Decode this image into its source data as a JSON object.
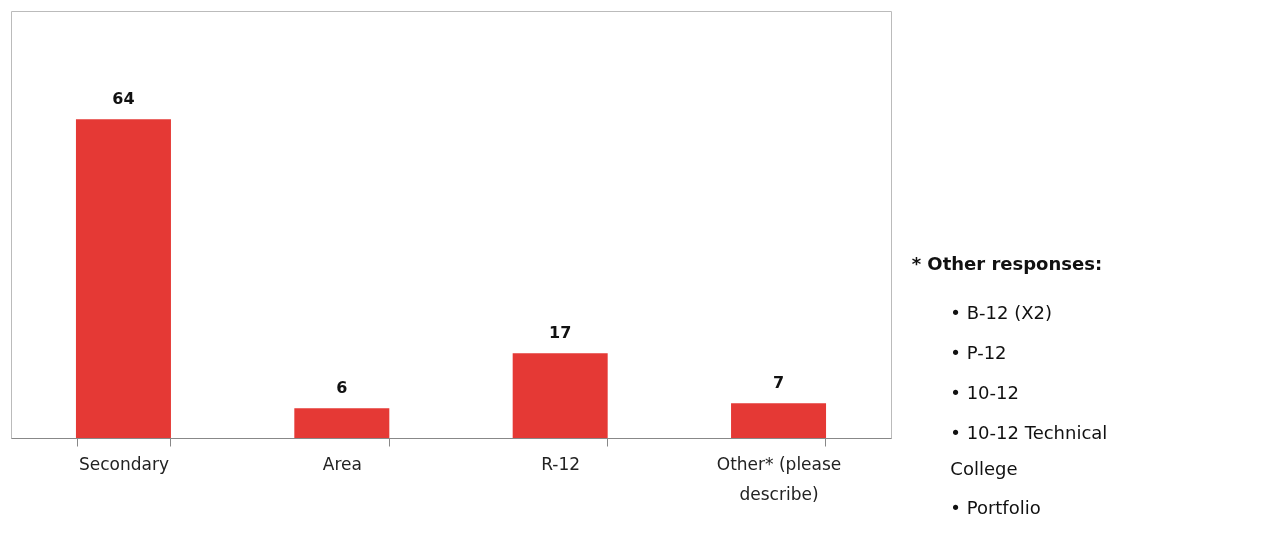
{
  "chart_data": {
    "type": "bar",
    "categories": [
      "Secondary",
      "Area",
      "R-12",
      "Other* (please describe)"
    ],
    "values": [
      64,
      6,
      17,
      7
    ],
    "color": "#e53935",
    "data_labels": true,
    "annotations": [
      "* Other responses:",
      "•  B-12 (X2)",
      "•  P-12",
      "•  10-12",
      "•  10-12 Technical College",
      "•  Portfolio"
    ]
  }
}
